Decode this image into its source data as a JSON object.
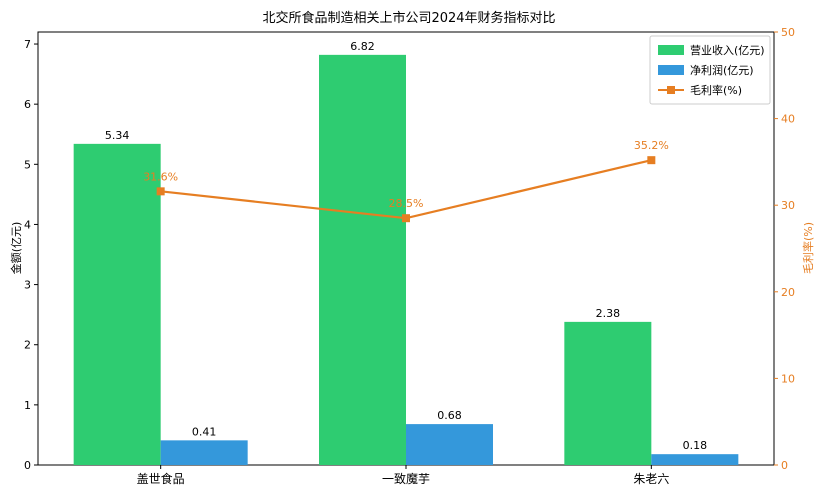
{
  "chart_data": {
    "type": "bar",
    "title": "北交所食品制造相关上市公司2024年财务指标对比",
    "categories": [
      "盖世食品",
      "一致魔芋",
      "朱老六"
    ],
    "y_left": {
      "label": "金额(亿元)",
      "range": [
        0,
        7.2
      ],
      "ticks": [
        0,
        1,
        2,
        3,
        4,
        5,
        6,
        7
      ]
    },
    "y_right": {
      "label": "毛利率(%)",
      "range": [
        0,
        50
      ],
      "ticks": [
        0,
        10,
        20,
        30,
        40,
        50
      ],
      "color": "#e67e22"
    },
    "series": [
      {
        "name": "营业收入(亿元)",
        "kind": "bar",
        "axis": "left",
        "color": "#2ecc71",
        "values": [
          5.34,
          6.82,
          2.38
        ],
        "labels": [
          "5.34",
          "6.82",
          "2.38"
        ]
      },
      {
        "name": "净利润(亿元)",
        "kind": "bar",
        "axis": "left",
        "color": "#3498db",
        "values": [
          0.41,
          0.68,
          0.18
        ],
        "labels": [
          "0.41",
          "0.68",
          "0.18"
        ]
      },
      {
        "name": "毛利率(%)",
        "kind": "line",
        "axis": "right",
        "color": "#e67e22",
        "values": [
          31.6,
          28.5,
          35.2
        ],
        "labels": [
          "31.6%",
          "28.5%",
          "35.2%"
        ]
      }
    ],
    "legend": {
      "placement": "top-right"
    },
    "grid": false
  }
}
